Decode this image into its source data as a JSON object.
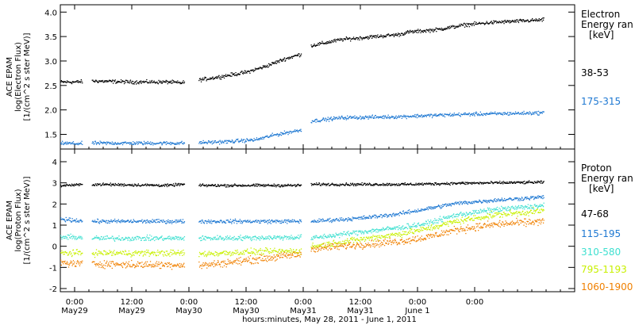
{
  "figure": {
    "xlabel": "hours:minutes, May 28, 2011 - June 1, 2011",
    "x_range_hours": [
      -3,
      105
    ],
    "x_ticks": [
      {
        "t": 0,
        "time": "0:00",
        "date": "May29"
      },
      {
        "t": 12,
        "time": "12:00",
        "date": "May29"
      },
      {
        "t": 24,
        "time": "0:00",
        "date": "May30"
      },
      {
        "t": 36,
        "time": "12:00",
        "date": "May30"
      },
      {
        "t": 48,
        "time": "0:00",
        "date": "May31"
      },
      {
        "t": 60,
        "time": "12:00",
        "date": "May31"
      },
      {
        "t": 72,
        "time": "0:00",
        "date": "June 1"
      },
      {
        "t": 84,
        "time": "0:00",
        "date": ""
      }
    ]
  },
  "chart_data": [
    {
      "type": "scatter",
      "title": "",
      "ylabel": [
        "ACE EPAM",
        "log(Electron Flux)",
        "[1/(cm^2 s ster MeV)]"
      ],
      "ylim": [
        1.2,
        4.15
      ],
      "yticks": [
        "1.5",
        "2.0",
        "2.5",
        "3.0",
        "3.5",
        "4.0"
      ],
      "ytick_values": [
        1.5,
        2.0,
        2.5,
        3.0,
        3.5,
        4.0
      ],
      "legend_title": [
        "Electron",
        "Energy ran",
        "[keV]"
      ],
      "data_gaps_hours": [
        [
          1.6,
          3.5
        ],
        [
          23.0,
          26.0
        ],
        [
          47.5,
          49.5
        ]
      ],
      "data_end_hour": 98.5,
      "series": [
        {
          "name": "38-53",
          "color": "#000000",
          "x": [
            -3,
            0,
            4,
            12,
            20,
            22,
            26,
            30,
            36,
            40,
            44,
            47.5,
            49.5,
            56,
            62,
            68,
            70,
            76,
            82,
            88,
            98.5
          ],
          "y": [
            2.58,
            2.58,
            2.6,
            2.58,
            2.58,
            2.56,
            2.62,
            2.68,
            2.78,
            2.9,
            3.05,
            3.15,
            3.32,
            3.45,
            3.5,
            3.55,
            3.6,
            3.65,
            3.75,
            3.8,
            3.85
          ]
        },
        {
          "name": "175-315",
          "color": "#1e78d2",
          "x": [
            -3,
            0,
            4,
            12,
            22,
            26,
            32,
            38,
            42,
            47.5,
            49.5,
            56,
            62,
            68,
            70,
            76,
            82,
            88,
            98.5
          ],
          "y": [
            1.33,
            1.32,
            1.33,
            1.33,
            1.33,
            1.34,
            1.36,
            1.4,
            1.5,
            1.6,
            1.78,
            1.85,
            1.86,
            1.87,
            1.88,
            1.9,
            1.92,
            1.93,
            1.95
          ]
        }
      ]
    },
    {
      "type": "scatter",
      "title": "",
      "ylabel": [
        "ACE EPAM",
        "log(Proton Flux)",
        "[1/(cm^2 s ster MeV)]"
      ],
      "ylim": [
        -2.15,
        4.6
      ],
      "yticks": [
        "-2",
        "-1",
        "0",
        "1",
        "2",
        "3",
        "4"
      ],
      "ytick_values": [
        -2,
        -1,
        0,
        1,
        2,
        3,
        4
      ],
      "legend_title": [
        "Proton",
        "Energy ran",
        "[keV]"
      ],
      "data_gaps_hours": [
        [
          1.6,
          3.5
        ],
        [
          23.0,
          26.0
        ],
        [
          47.5,
          49.5
        ]
      ],
      "data_end_hour": 98.5,
      "series": [
        {
          "name": "47-68",
          "color": "#000000",
          "x": [
            -3,
            4,
            20,
            22,
            26,
            32,
            48,
            49.5,
            62,
            70,
            80,
            98.5
          ],
          "y": [
            2.9,
            2.95,
            2.9,
            2.95,
            2.9,
            2.9,
            2.9,
            2.95,
            2.95,
            2.95,
            3.0,
            3.05
          ]
        },
        {
          "name": "115-195",
          "color": "#1e78d2",
          "x": [
            -3,
            0,
            4,
            12,
            22,
            26,
            36,
            47.5,
            49.5,
            60,
            68,
            74,
            80,
            88,
            98.5
          ],
          "y": [
            1.3,
            1.25,
            1.2,
            1.2,
            1.2,
            1.2,
            1.2,
            1.2,
            1.2,
            1.35,
            1.55,
            1.8,
            2.05,
            2.2,
            2.35
          ]
        },
        {
          "name": "310-580",
          "color": "#3fe0d0",
          "x": [
            -3,
            0,
            4,
            12,
            22,
            26,
            36,
            47.5,
            49.5,
            60,
            68,
            74,
            80,
            88,
            98.5
          ],
          "y": [
            0.45,
            0.45,
            0.4,
            0.4,
            0.4,
            0.4,
            0.42,
            0.45,
            0.4,
            0.7,
            0.9,
            1.1,
            1.5,
            1.75,
            1.95
          ]
        },
        {
          "name": "795-1193",
          "color": "#c8f000",
          "x": [
            -3,
            0,
            4,
            12,
            22,
            26,
            36,
            47.5,
            49.5,
            60,
            68,
            74,
            80,
            88,
            98.5
          ],
          "y": [
            -0.3,
            -0.3,
            -0.3,
            -0.3,
            -0.3,
            -0.35,
            -0.25,
            -0.2,
            0.0,
            0.35,
            0.6,
            0.85,
            1.2,
            1.5,
            1.7
          ]
        },
        {
          "name": "1060-1900",
          "color": "#f08000",
          "x": [
            -3,
            0,
            4,
            12,
            22,
            26,
            36,
            47.5,
            49.5,
            60,
            68,
            74,
            80,
            88,
            98.5
          ],
          "y": [
            -0.75,
            -0.8,
            -0.8,
            -0.85,
            -0.85,
            -0.9,
            -0.65,
            -0.35,
            -0.1,
            0.1,
            0.25,
            0.45,
            0.8,
            1.05,
            1.2
          ]
        }
      ]
    }
  ]
}
